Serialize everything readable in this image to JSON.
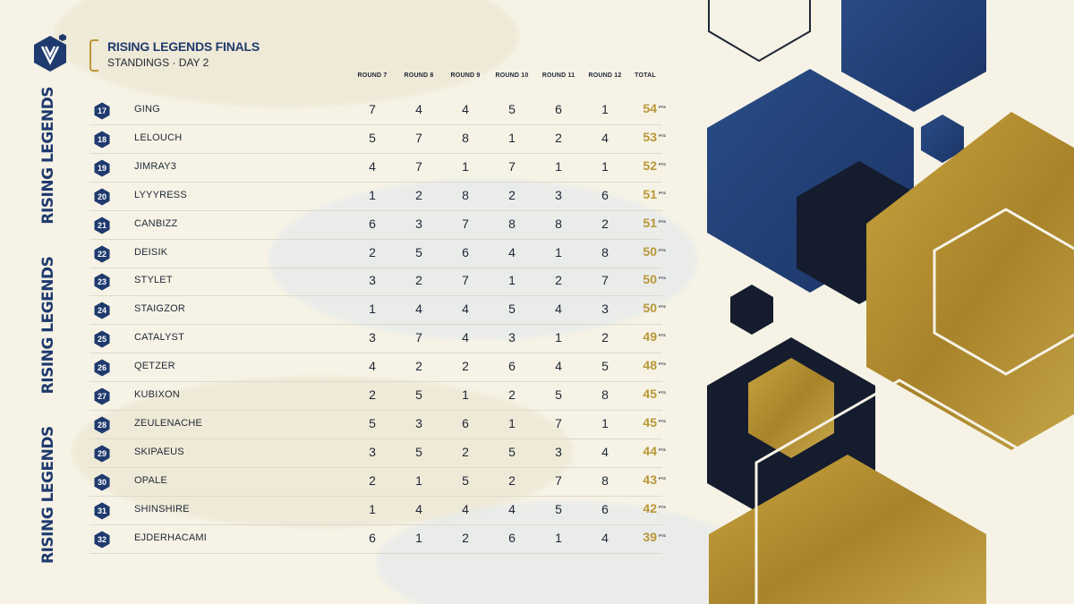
{
  "header": {
    "title": "RISING LEGENDS FINALS",
    "subtitle": "STANDINGS · DAY 2"
  },
  "side_text": [
    "RISING LEGENDS",
    "RISING LEGENDS",
    "RISING LEGENDS"
  ],
  "columns": [
    "ROUND 7",
    "ROUND 8",
    "ROUND 9",
    "ROUND 10",
    "ROUND 11",
    "ROUND 12",
    "TOTAL"
  ],
  "points_suffix": "PTS",
  "rows": [
    {
      "rank": "17",
      "name": "GING",
      "rounds": [
        "7",
        "4",
        "4",
        "5",
        "6",
        "1"
      ],
      "total": "54"
    },
    {
      "rank": "18",
      "name": "LELOUCH",
      "rounds": [
        "5",
        "7",
        "8",
        "1",
        "2",
        "4"
      ],
      "total": "53"
    },
    {
      "rank": "19",
      "name": "JIMRAY3",
      "rounds": [
        "4",
        "7",
        "1",
        "7",
        "1",
        "1"
      ],
      "total": "52"
    },
    {
      "rank": "20",
      "name": "LYYYRESS",
      "rounds": [
        "1",
        "2",
        "8",
        "2",
        "3",
        "6"
      ],
      "total": "51"
    },
    {
      "rank": "21",
      "name": "CANBIZZ",
      "rounds": [
        "6",
        "3",
        "7",
        "8",
        "8",
        "2"
      ],
      "total": "51"
    },
    {
      "rank": "22",
      "name": "DEISIK",
      "rounds": [
        "2",
        "5",
        "6",
        "4",
        "1",
        "8"
      ],
      "total": "50"
    },
    {
      "rank": "23",
      "name": "STYLET",
      "rounds": [
        "3",
        "2",
        "7",
        "1",
        "2",
        "7"
      ],
      "total": "50"
    },
    {
      "rank": "24",
      "name": "STAIGZOR",
      "rounds": [
        "1",
        "4",
        "4",
        "5",
        "4",
        "3"
      ],
      "total": "50"
    },
    {
      "rank": "25",
      "name": "CATALYST",
      "rounds": [
        "3",
        "7",
        "4",
        "3",
        "1",
        "2"
      ],
      "total": "49"
    },
    {
      "rank": "26",
      "name": "QETZER",
      "rounds": [
        "4",
        "2",
        "2",
        "6",
        "4",
        "5"
      ],
      "total": "48"
    },
    {
      "rank": "27",
      "name": "KUBIXON",
      "rounds": [
        "2",
        "5",
        "1",
        "2",
        "5",
        "8"
      ],
      "total": "45"
    },
    {
      "rank": "28",
      "name": "ZEULENACHE",
      "rounds": [
        "5",
        "3",
        "6",
        "1",
        "7",
        "1"
      ],
      "total": "45"
    },
    {
      "rank": "29",
      "name": "SKIPAEUS",
      "rounds": [
        "3",
        "5",
        "2",
        "5",
        "3",
        "4"
      ],
      "total": "44"
    },
    {
      "rank": "30",
      "name": "OPALE",
      "rounds": [
        "2",
        "1",
        "5",
        "2",
        "7",
        "8"
      ],
      "total": "43"
    },
    {
      "rank": "31",
      "name": "SHINSHIRE",
      "rounds": [
        "1",
        "4",
        "4",
        "4",
        "5",
        "6"
      ],
      "total": "42"
    },
    {
      "rank": "32",
      "name": "EJDERHACAMI",
      "rounds": [
        "6",
        "1",
        "2",
        "6",
        "1",
        "4"
      ],
      "total": "39"
    }
  ],
  "colors": {
    "navy": "#1f3a6e",
    "gold": "#b99637",
    "dark": "#141c2e",
    "background": "#f6f3e6"
  },
  "icons": [
    "logo-hexagon-icon",
    "rank-hexagon-icon",
    "hexagon-decoration-icon"
  ]
}
